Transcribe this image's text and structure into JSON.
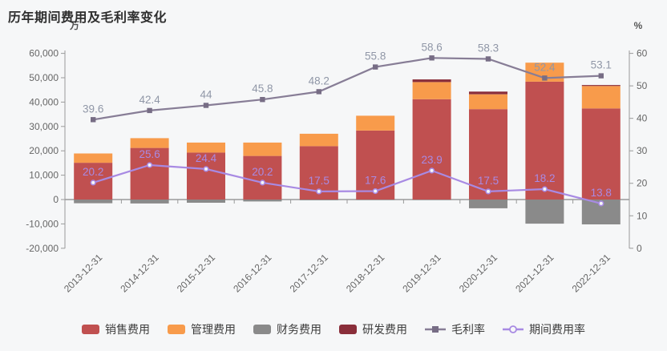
{
  "header": {
    "title": "历年期间费用及毛利率变化"
  },
  "axes": {
    "left_unit": "万",
    "right_unit": "%",
    "left_ticks": [
      {
        "value": -20000,
        "label": "-20,000"
      },
      {
        "value": -10000,
        "label": "-10,000"
      },
      {
        "value": 0,
        "label": "0"
      },
      {
        "value": 10000,
        "label": "10,000"
      },
      {
        "value": 20000,
        "label": "20,000"
      },
      {
        "value": 30000,
        "label": "30,000"
      },
      {
        "value": 40000,
        "label": "40,000"
      },
      {
        "value": 50000,
        "label": "50,000"
      },
      {
        "value": 60000,
        "label": "60,000"
      }
    ],
    "right_ticks": [
      {
        "value": 0,
        "label": "0"
      },
      {
        "value": 10,
        "label": "10"
      },
      {
        "value": 20,
        "label": "20"
      },
      {
        "value": 30,
        "label": "30"
      },
      {
        "value": 40,
        "label": "40"
      },
      {
        "value": 50,
        "label": "50"
      },
      {
        "value": 60,
        "label": "60"
      }
    ]
  },
  "chart_data": {
    "type": "bar",
    "title": "历年期间费用及毛利率变化",
    "categories": [
      "2013-12-31",
      "2014-12-31",
      "2015-12-31",
      "2016-12-31",
      "2017-12-31",
      "2018-12-31",
      "2019-12-31",
      "2020-12-31",
      "2021-12-31",
      "2022-12-31"
    ],
    "left_axis": {
      "unit": "万",
      "min": -20000,
      "max": 60000,
      "step": 10000
    },
    "right_axis": {
      "unit": "%",
      "min": 0,
      "max": 60,
      "step": 10
    },
    "legend_position": "bottom",
    "grid": false,
    "series": [
      {
        "key": "sales-expense",
        "name": "销售费用",
        "type": "bar",
        "stack": true,
        "color": "#c05050",
        "values": [
          15100,
          21200,
          19300,
          17900,
          21900,
          28300,
          41200,
          37100,
          48400,
          37400
        ]
      },
      {
        "key": "admin-expense",
        "name": "管理费用",
        "type": "bar",
        "stack": true,
        "color": "#f89b4b",
        "values": [
          3800,
          4000,
          4100,
          5500,
          5100,
          6100,
          7000,
          6100,
          7800,
          9200
        ]
      },
      {
        "key": "finance-expense",
        "name": "财务费用",
        "type": "bar",
        "stack": true,
        "color": "#8a8a8a",
        "values": [
          -1500,
          -1600,
          -1300,
          -800,
          -300,
          -200,
          -200,
          -3600,
          -9900,
          -10200
        ]
      },
      {
        "key": "rd-expense",
        "name": "研发费用",
        "type": "bar",
        "stack": true,
        "color": "#8a2e3a",
        "values": [
          0,
          0,
          0,
          0,
          0,
          0,
          1100,
          1100,
          0,
          400
        ]
      },
      {
        "key": "gross-margin",
        "name": "毛利率",
        "type": "line",
        "axis": "right",
        "color": "#877d96",
        "marker": "square",
        "label_color": "#9097a7",
        "values": [
          39.6,
          42.4,
          44,
          45.8,
          48.2,
          55.8,
          58.6,
          58.3,
          52.4,
          53.1
        ]
      },
      {
        "key": "expense-ratio",
        "name": "期间费用率",
        "type": "line",
        "axis": "right",
        "color": "#a88ae3",
        "marker": "hollow-circle",
        "label_color": "#a88ae3",
        "values": [
          20.2,
          25.6,
          24.4,
          20.2,
          17.5,
          17.6,
          23.9,
          17.5,
          18.2,
          13.8
        ]
      }
    ]
  },
  "legend": {
    "items": [
      {
        "key": "sales-expense",
        "label": "销售费用",
        "type": "bar",
        "color": "#c05050"
      },
      {
        "key": "admin-expense",
        "label": "管理费用",
        "type": "bar",
        "color": "#f89b4b"
      },
      {
        "key": "finance-expense",
        "label": "财务费用",
        "type": "bar",
        "color": "#8a8a8a"
      },
      {
        "key": "rd-expense",
        "label": "研发费用",
        "type": "bar",
        "color": "#8a2e3a"
      },
      {
        "key": "gross-margin",
        "label": "毛利率",
        "type": "line-square",
        "color": "#877d96"
      },
      {
        "key": "expense-ratio",
        "label": "期间费用率",
        "type": "line-circle",
        "color": "#a88ae3"
      }
    ]
  }
}
